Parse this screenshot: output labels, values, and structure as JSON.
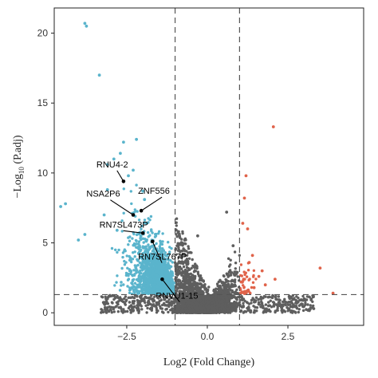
{
  "chart_data": {
    "type": "scatter",
    "title": "",
    "xlabel": "Log2 (Fold Change)",
    "ylabel_prefix": "−Log",
    "ylabel_sub": "10",
    "ylabel_suffix": " (P.adj)",
    "xlim": [
      -4.75,
      4.85
    ],
    "ylim": [
      -0.9,
      21.8
    ],
    "x_ticks": [
      -2.5,
      0.0,
      2.5
    ],
    "x_tick_labels": [
      "−2.5",
      "0.0",
      "2.5"
    ],
    "y_ticks": [
      0,
      5,
      10,
      15,
      20
    ],
    "y_tick_labels": [
      "0",
      "5",
      "10",
      "15",
      "20"
    ],
    "fc_threshold": 1,
    "padj_threshold_neglog10": 1.3,
    "grid": false,
    "legend": "none",
    "colors": {
      "down": "#5ab4cc",
      "up": "#e0634a",
      "ns": "#5e5e5e",
      "threshold_line": "#555555",
      "label": "#000000"
    },
    "series": [
      {
        "group": "down",
        "x": [
          -3.8,
          -3.75,
          -3.35,
          -2.2,
          -2.6,
          -2.7,
          -2.9,
          -3.1,
          -2.45,
          -2.3,
          -4.4,
          -4.55,
          -3.1,
          -2.0,
          -1.95,
          -3.8,
          -4.0,
          -2.8,
          -3.2
        ],
        "y": [
          20.7,
          20.5,
          17.0,
          12.4,
          12.2,
          11.4,
          11.0,
          10.6,
          9.8,
          10.2,
          7.8,
          7.6,
          8.8,
          8.7,
          8.1,
          5.6,
          5.2,
          5.9,
          7.0
        ]
      },
      {
        "group": "up",
        "x": [
          2.05,
          1.2,
          1.15,
          1.1,
          1.25,
          3.5,
          3.9,
          1.4,
          2.1,
          1.6,
          1.8,
          1.3,
          1.05,
          1.45,
          1.7
        ],
        "y": [
          13.3,
          9.8,
          8.2,
          6.4,
          6.0,
          3.2,
          1.4,
          4.1,
          2.4,
          2.6,
          2.0,
          3.6,
          2.2,
          1.8,
          3.0
        ],
        "labels": []
      },
      {
        "group": "ns",
        "x": [
          1.9,
          2.3,
          0.6,
          -0.3,
          0.8,
          2.8,
          3.3
        ],
        "y": [
          0.5,
          0.4,
          7.2,
          5.5,
          4.8,
          0.8,
          0.3
        ]
      }
    ],
    "annotations": [
      {
        "label": "RNU4-2",
        "x": -2.95,
        "y": 10.4,
        "px": -2.6,
        "py": 9.4,
        "anchor": "middle"
      },
      {
        "label": "NSA2P6",
        "x": -3.75,
        "y": 8.3,
        "px": -2.3,
        "py": 7.0,
        "anchor": "start"
      },
      {
        "label": "ZNF556",
        "x": -2.15,
        "y": 8.5,
        "px": -2.05,
        "py": 7.3,
        "anchor": "start"
      },
      {
        "label": "RN7SL473P",
        "x": -3.35,
        "y": 6.1,
        "px": -2.0,
        "py": 5.7,
        "anchor": "start"
      },
      {
        "label": "RN7SL767P",
        "x": -2.15,
        "y": 3.8,
        "px": -1.7,
        "py": 5.1,
        "anchor": "start"
      },
      {
        "label": "RNVU1-15",
        "x": -1.6,
        "y": 1.0,
        "px": -1.4,
        "py": 2.4,
        "anchor": "start"
      }
    ]
  }
}
